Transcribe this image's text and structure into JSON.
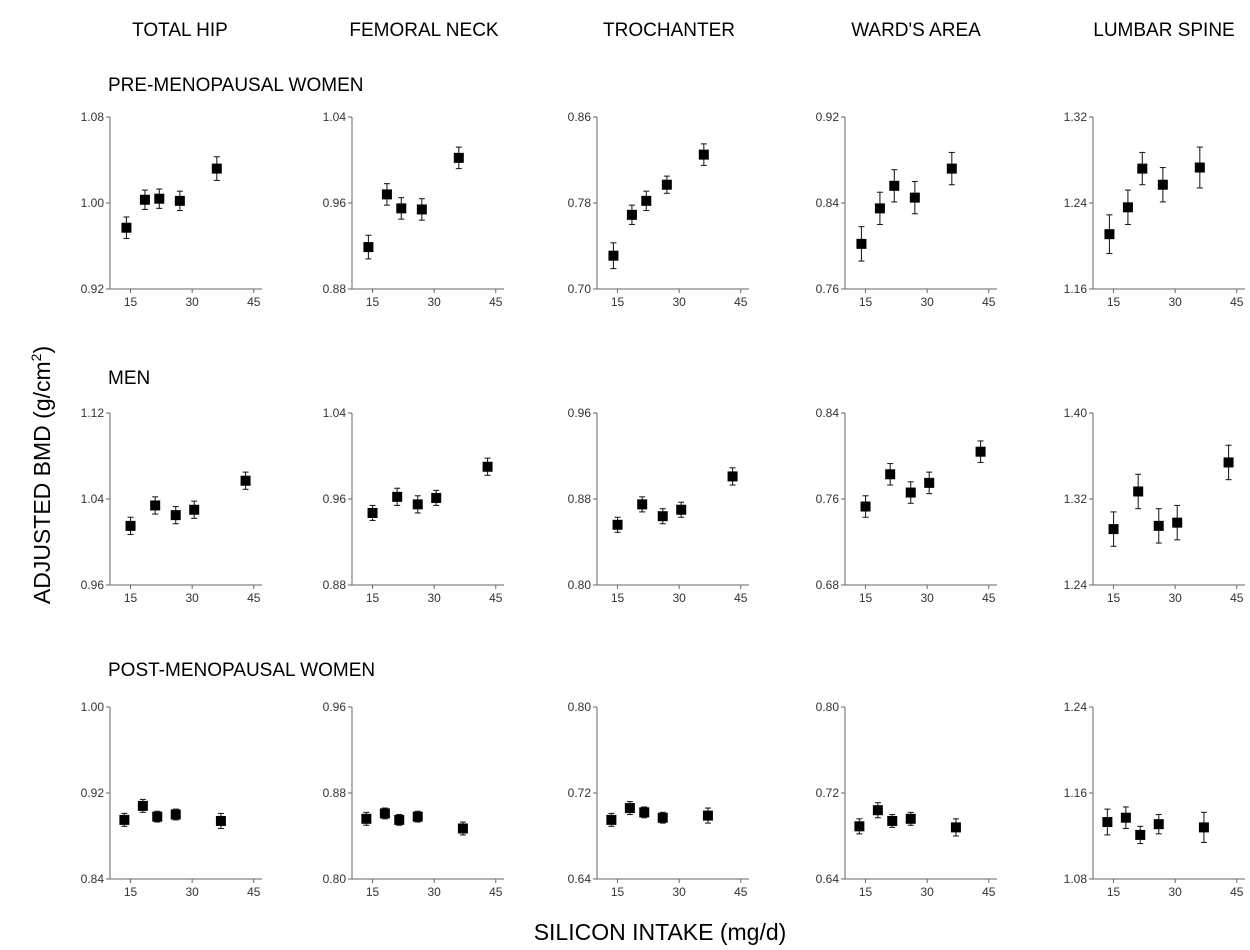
{
  "figure": {
    "column_titles": [
      "TOTAL HIP",
      "FEMORAL NECK",
      "TROCHANTER",
      "WARD'S AREA",
      "LUMBAR SPINE"
    ],
    "row_titles": [
      "PRE-MENOPAUSAL WOMEN",
      "MEN",
      "POST-MENOPAUSAL WOMEN"
    ],
    "ylabel_main": "ADJUSTED BMD (g/cm",
    "ylabel_sup": "2",
    "ylabel_end": ")",
    "xlabel": "SILICON INTAKE (mg/d)",
    "x_ticks": [
      "15",
      "30",
      "45"
    ]
  },
  "chart_data": [
    {
      "type": "scatter",
      "group": "PRE-MENOPAUSAL WOMEN",
      "site": "TOTAL HIP",
      "xlim": [
        10,
        47
      ],
      "ylim": [
        0.92,
        1.08
      ],
      "yticks": [
        "1.08",
        "1.00",
        "0.92"
      ],
      "x": [
        14,
        18.5,
        22,
        27,
        36
      ],
      "y": [
        0.977,
        1.003,
        1.004,
        1.002,
        1.032
      ],
      "err": [
        0.01,
        0.009,
        0.009,
        0.009,
        0.011
      ]
    },
    {
      "type": "scatter",
      "group": "PRE-MENOPAUSAL WOMEN",
      "site": "FEMORAL NECK",
      "xlim": [
        10,
        47
      ],
      "ylim": [
        0.88,
        1.04
      ],
      "yticks": [
        "1.04",
        "0.96",
        "0.88"
      ],
      "x": [
        14,
        18.5,
        22,
        27,
        36
      ],
      "y": [
        0.919,
        0.968,
        0.955,
        0.954,
        1.002
      ],
      "err": [
        0.011,
        0.01,
        0.01,
        0.01,
        0.01
      ]
    },
    {
      "type": "scatter",
      "group": "PRE-MENOPAUSAL WOMEN",
      "site": "TROCHANTER",
      "xlim": [
        10,
        47
      ],
      "ylim": [
        0.7,
        0.86
      ],
      "yticks": [
        "0.86",
        "0.78",
        "0.70"
      ],
      "x": [
        14,
        18.5,
        22,
        27,
        36
      ],
      "y": [
        0.731,
        0.769,
        0.782,
        0.797,
        0.825
      ],
      "err": [
        0.012,
        0.009,
        0.009,
        0.008,
        0.01
      ]
    },
    {
      "type": "scatter",
      "group": "PRE-MENOPAUSAL WOMEN",
      "site": "WARD'S AREA",
      "xlim": [
        10,
        47
      ],
      "ylim": [
        0.76,
        0.92
      ],
      "yticks": [
        "0.92",
        "0.84",
        "0.76"
      ],
      "x": [
        14,
        18.5,
        22,
        27,
        36
      ],
      "y": [
        0.802,
        0.835,
        0.856,
        0.845,
        0.872
      ],
      "err": [
        0.016,
        0.015,
        0.015,
        0.015,
        0.015
      ]
    },
    {
      "type": "scatter",
      "group": "PRE-MENOPAUSAL WOMEN",
      "site": "LUMBAR SPINE",
      "xlim": [
        10,
        47
      ],
      "ylim": [
        1.16,
        1.32
      ],
      "yticks": [
        "1.32",
        "1.24",
        "1.16"
      ],
      "x": [
        14,
        18.5,
        22,
        27,
        36
      ],
      "y": [
        1.211,
        1.236,
        1.272,
        1.257,
        1.273
      ],
      "err": [
        0.018,
        0.016,
        0.015,
        0.016,
        0.019
      ]
    },
    {
      "type": "scatter",
      "group": "MEN",
      "site": "TOTAL HIP",
      "xlim": [
        10,
        47
      ],
      "ylim": [
        0.96,
        1.12
      ],
      "yticks": [
        "1.12",
        "1.04",
        "0.96"
      ],
      "x": [
        15,
        21,
        26,
        30.5,
        43
      ],
      "y": [
        1.015,
        1.034,
        1.025,
        1.03,
        1.057
      ],
      "err": [
        0.008,
        0.008,
        0.008,
        0.008,
        0.008
      ]
    },
    {
      "type": "scatter",
      "group": "MEN",
      "site": "FEMORAL NECK",
      "xlim": [
        10,
        47
      ],
      "ylim": [
        0.88,
        1.04
      ],
      "yticks": [
        "1.04",
        "0.96",
        "0.88"
      ],
      "x": [
        15,
        21,
        26,
        30.5,
        43
      ],
      "y": [
        0.947,
        0.962,
        0.955,
        0.961,
        0.99
      ],
      "err": [
        0.007,
        0.008,
        0.008,
        0.007,
        0.008
      ]
    },
    {
      "type": "scatter",
      "group": "MEN",
      "site": "TROCHANTER",
      "xlim": [
        10,
        47
      ],
      "ylim": [
        0.8,
        0.96
      ],
      "yticks": [
        "0.96",
        "0.88",
        "0.80"
      ],
      "x": [
        15,
        21,
        26,
        30.5,
        43
      ],
      "y": [
        0.856,
        0.875,
        0.864,
        0.87,
        0.901
      ],
      "err": [
        0.007,
        0.007,
        0.007,
        0.007,
        0.008
      ]
    },
    {
      "type": "scatter",
      "group": "MEN",
      "site": "WARD'S AREA",
      "xlim": [
        10,
        47
      ],
      "ylim": [
        0.68,
        0.84
      ],
      "yticks": [
        "0.84",
        "0.76",
        "0.68"
      ],
      "x": [
        15,
        21,
        26,
        30.5,
        43
      ],
      "y": [
        0.753,
        0.783,
        0.766,
        0.775,
        0.804
      ],
      "err": [
        0.01,
        0.01,
        0.01,
        0.01,
        0.01
      ]
    },
    {
      "type": "scatter",
      "group": "MEN",
      "site": "LUMBAR SPINE",
      "xlim": [
        10,
        47
      ],
      "ylim": [
        1.24,
        1.4
      ],
      "yticks": [
        "1.40",
        "1.32",
        "1.24"
      ],
      "x": [
        15,
        21,
        26,
        30.5,
        43
      ],
      "y": [
        1.292,
        1.327,
        1.295,
        1.298,
        1.354
      ],
      "err": [
        0.016,
        0.016,
        0.016,
        0.016,
        0.016
      ]
    },
    {
      "type": "scatter",
      "group": "POST-MENOPAUSAL WOMEN",
      "site": "TOTAL HIP",
      "xlim": [
        10,
        47
      ],
      "ylim": [
        0.84,
        1.0
      ],
      "yticks": [
        "1.00",
        "0.92",
        "0.84"
      ],
      "x": [
        13.5,
        18,
        21.5,
        26,
        37
      ],
      "y": [
        0.895,
        0.908,
        0.898,
        0.9,
        0.894
      ],
      "err": [
        0.006,
        0.006,
        0.005,
        0.005,
        0.007
      ]
    },
    {
      "type": "scatter",
      "group": "POST-MENOPAUSAL WOMEN",
      "site": "FEMORAL NECK",
      "xlim": [
        10,
        47
      ],
      "ylim": [
        0.8,
        0.96
      ],
      "yticks": [
        "0.96",
        "0.88",
        "0.80"
      ],
      "x": [
        13.5,
        18,
        21.5,
        26,
        37
      ],
      "y": [
        0.856,
        0.861,
        0.855,
        0.858,
        0.847
      ],
      "err": [
        0.006,
        0.005,
        0.005,
        0.005,
        0.006
      ]
    },
    {
      "type": "scatter",
      "group": "POST-MENOPAUSAL WOMEN",
      "site": "TROCHANTER",
      "xlim": [
        10,
        47
      ],
      "ylim": [
        0.64,
        0.8
      ],
      "yticks": [
        "0.80",
        "0.72",
        "0.64"
      ],
      "x": [
        13.5,
        18,
        21.5,
        26,
        37
      ],
      "y": [
        0.695,
        0.706,
        0.702,
        0.697,
        0.699
      ],
      "err": [
        0.006,
        0.006,
        0.005,
        0.005,
        0.007
      ]
    },
    {
      "type": "scatter",
      "group": "POST-MENOPAUSAL WOMEN",
      "site": "WARD'S AREA",
      "xlim": [
        10,
        47
      ],
      "ylim": [
        0.64,
        0.8
      ],
      "yticks": [
        "0.80",
        "0.72",
        "0.64"
      ],
      "x": [
        13.5,
        18,
        21.5,
        26,
        37
      ],
      "y": [
        0.689,
        0.704,
        0.694,
        0.696,
        0.688
      ],
      "err": [
        0.007,
        0.007,
        0.006,
        0.006,
        0.008
      ]
    },
    {
      "type": "scatter",
      "group": "POST-MENOPAUSAL WOMEN",
      "site": "LUMBAR SPINE",
      "xlim": [
        10,
        47
      ],
      "ylim": [
        1.08,
        1.24
      ],
      "yticks": [
        "1.24",
        "1.16",
        "1.08"
      ],
      "x": [
        13.5,
        18,
        21.5,
        26,
        37
      ],
      "y": [
        1.133,
        1.137,
        1.121,
        1.131,
        1.128
      ],
      "err": [
        0.012,
        0.01,
        0.008,
        0.009,
        0.014
      ]
    }
  ]
}
